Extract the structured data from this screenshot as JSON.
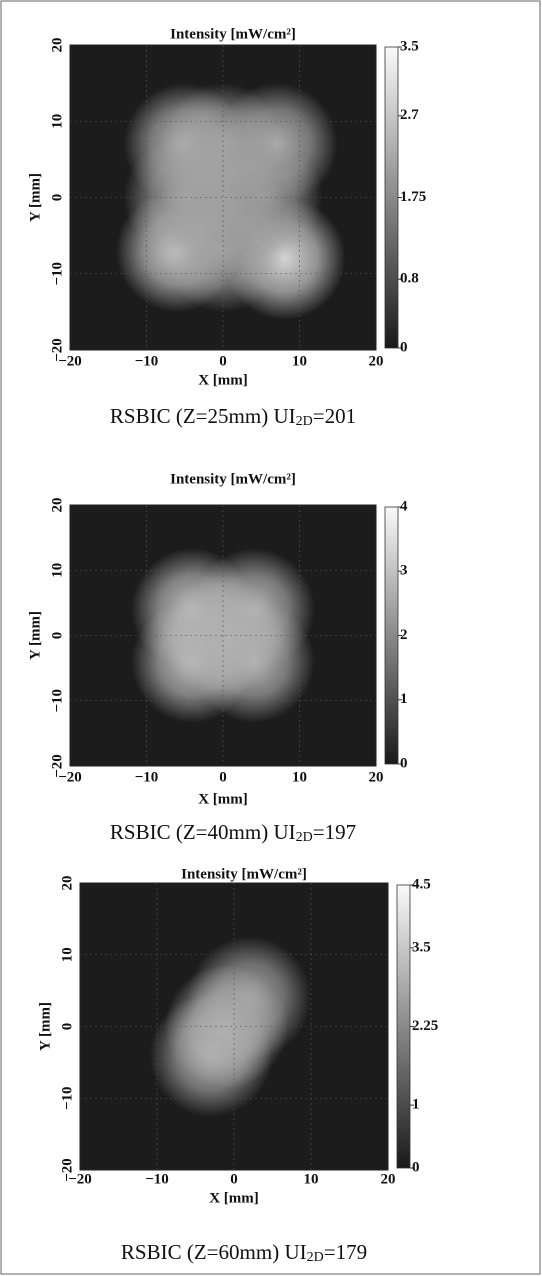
{
  "chart_data": [
    {
      "type": "heatmap",
      "title": "Intensity [mW/cm²]",
      "xlabel": "X [mm]",
      "ylabel": "Y [mm]",
      "xlim": [
        -20,
        20
      ],
      "ylim": [
        -20,
        20
      ],
      "xticks": [
        {
          "value": -20,
          "label": "−20"
        },
        {
          "value": -10,
          "label": "−10"
        },
        0,
        10,
        20
      ],
      "yticks": [
        {
          "value": -20,
          "label": "−20"
        },
        {
          "value": -10,
          "label": "−10"
        },
        0,
        10,
        20
      ],
      "grid": true,
      "clim": [
        0,
        3.5
      ],
      "cticks": [
        0,
        0.8,
        1.75,
        2.7,
        3.5
      ],
      "spots": [
        {
          "x": -5,
          "y": 7,
          "value": 2.6
        },
        {
          "x": 7,
          "y": 7,
          "value": 2.5
        },
        {
          "x": -6,
          "y": -7,
          "value": 3.0
        },
        {
          "x": 8,
          "y": -8,
          "value": 3.2
        },
        {
          "x": 0,
          "y": 0,
          "value": 2.2
        },
        {
          "x": -5,
          "y": 0,
          "value": 2.3
        },
        {
          "x": 5,
          "y": 0,
          "value": 2.2
        },
        {
          "x": 0,
          "y": 7,
          "value": 2.3
        },
        {
          "x": 0,
          "y": -7,
          "value": 2.3
        }
      ],
      "caption": [
        "RSBIC (Z=25mm) UI",
        "2D",
        "=201"
      ]
    },
    {
      "type": "heatmap",
      "title": "Intensity [mW/cm²]",
      "xlabel": "X [mm]",
      "ylabel": "Y [mm]",
      "xlim": [
        -20,
        20
      ],
      "ylim": [
        -20,
        20
      ],
      "xticks": [
        {
          "value": -20,
          "label": "−20"
        },
        {
          "value": -10,
          "label": "−10"
        },
        0,
        10,
        20
      ],
      "yticks": [
        {
          "value": -20,
          "label": "−20"
        },
        {
          "value": -10,
          "label": "−10"
        },
        0,
        10,
        20
      ],
      "grid": true,
      "clim": [
        0,
        4
      ],
      "cticks": [
        0,
        1,
        2,
        3,
        4
      ],
      "spots": [
        {
          "x": -4,
          "y": 4,
          "value": 3.2
        },
        {
          "x": 4,
          "y": 4,
          "value": 3.0
        },
        {
          "x": -4,
          "y": -4,
          "value": 3.2
        },
        {
          "x": 4,
          "y": -4,
          "value": 3.0
        },
        {
          "x": 0,
          "y": 0,
          "value": 2.8
        }
      ],
      "caption": [
        "RSBIC (Z=40mm) UI",
        "2D",
        "=197"
      ]
    },
    {
      "type": "heatmap",
      "title": "Intensity [mW/cm²]",
      "xlabel": "X [mm]",
      "ylabel": "Y [mm]",
      "xlim": [
        -20,
        20
      ],
      "ylim": [
        -20,
        20
      ],
      "xticks": [
        {
          "value": -20,
          "label": "−20"
        },
        {
          "value": -10,
          "label": "−10"
        },
        0,
        10,
        20
      ],
      "yticks": [
        {
          "value": -20,
          "label": "−20"
        },
        {
          "value": -10,
          "label": "−10"
        },
        0,
        10,
        20
      ],
      "grid": true,
      "clim": [
        0,
        4.5
      ],
      "cticks": [
        0,
        1,
        2.25,
        3.5,
        4.5
      ],
      "spots": [
        {
          "x": -1,
          "y": 0,
          "value": 3.6
        },
        {
          "x": -3,
          "y": -4,
          "value": 3.2
        },
        {
          "x": 2,
          "y": 4,
          "value": 3.0
        }
      ],
      "caption": [
        "RSBIC (Z=60mm) UI",
        "2D",
        "=179"
      ]
    }
  ]
}
